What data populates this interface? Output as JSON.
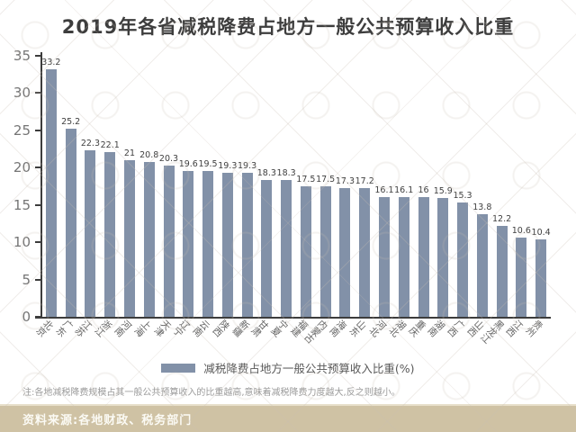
{
  "title": "2019年各省减税降费占地方一般公共预算收入比重",
  "legend": {
    "label": "减税降费占地方一般公共预算收入比重(%)"
  },
  "note": "注:各地减税降费规模占其一般公共预算收入的比重越高,意味着减税降费力度越大,反之则越小。",
  "source": "资料来源:各地财政、税务部门",
  "colors": {
    "bar": "#8291a8",
    "title_text": "#3d3d3d",
    "axis": "#3c3c3c",
    "source_bar_bg": "#cfc2a4",
    "source_text": "#fbfaf4"
  },
  "chart_data": {
    "type": "bar",
    "title": "2019年各省减税降费占地方一般公共预算收入比重",
    "categories": [
      "北京",
      "广东",
      "江苏",
      "浙江",
      "河南",
      "上海",
      "天津",
      "辽宁",
      "云南",
      "陕西",
      "新疆",
      "甘肃",
      "宁夏",
      "福建",
      "内蒙古",
      "海南",
      "山东",
      "河北",
      "湖北",
      "重庆",
      "湖南",
      "广西",
      "山西",
      "黑龙江",
      "江西",
      "贵州"
    ],
    "values": [
      33.2,
      25.2,
      22.3,
      22.1,
      21,
      20.8,
      20.3,
      19.6,
      19.5,
      19.3,
      19.3,
      18.3,
      18.3,
      17.5,
      17.5,
      17.3,
      17.2,
      16.1,
      16.1,
      16,
      15.9,
      15.3,
      13.8,
      12.2,
      10.6,
      10.4
    ],
    "value_labels": [
      "33.2",
      "25.2",
      "22.3",
      "22.1",
      "21",
      "20.8",
      "20.3",
      "19.6",
      "19.5",
      "19.3",
      "19.3",
      "18.3",
      "18.3",
      "17.5",
      "17.5",
      "17.3",
      "17.2",
      "16.1",
      "16.1",
      "16",
      "15.9",
      "15.3",
      "13.8",
      "12.2",
      "10.6",
      "10.4"
    ],
    "xlabel": "",
    "ylabel": "",
    "ylim": [
      0,
      35
    ],
    "yticks": [
      0,
      5,
      10,
      15,
      20,
      25,
      30,
      35
    ],
    "grid": false,
    "legend_position": "bottom",
    "bar_color": "#8291a8"
  }
}
